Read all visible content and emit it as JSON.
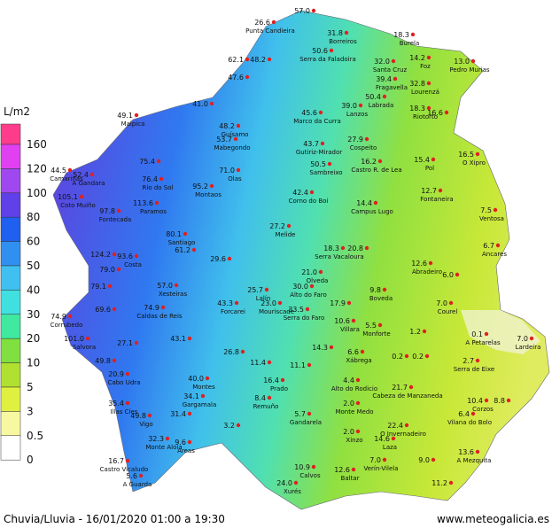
{
  "legend": {
    "title": "L/m2",
    "items": [
      {
        "label": "160",
        "color": "#ff3c8c"
      },
      {
        "label": "120",
        "color": "#e040f0"
      },
      {
        "label": "100",
        "color": "#a048f0"
      },
      {
        "label": "80",
        "color": "#6040e8"
      },
      {
        "label": "60",
        "color": "#2060f0"
      },
      {
        "label": "50",
        "color": "#3090f0"
      },
      {
        "label": "40",
        "color": "#40c0f0"
      },
      {
        "label": "30",
        "color": "#40e0e0"
      },
      {
        "label": "20",
        "color": "#40e8a0"
      },
      {
        "label": "10",
        "color": "#80e040"
      },
      {
        "label": "5",
        "color": "#b0e030"
      },
      {
        "label": "3",
        "color": "#e0f040"
      },
      {
        "label": "0.5",
        "color": "#f8f8a0"
      },
      {
        "label": "0",
        "color": "#ffffff"
      }
    ]
  },
  "stations": [
    {
      "value": "26.6",
      "name": "Punta Candieira"
    },
    {
      "value": "57.0"
    },
    {
      "value": "31.8",
      "name": "Borreiros"
    },
    {
      "value": "18.3",
      "name": "Burela"
    },
    {
      "value": "50.6",
      "name": "Serra da Faladoira"
    },
    {
      "value": "32.0",
      "name": "Santa Cruz"
    },
    {
      "value": "14.2",
      "name": "Foz"
    },
    {
      "value": "13.0",
      "name": "Pedro Murias"
    },
    {
      "value": "62.1"
    },
    {
      "value": "48.2"
    },
    {
      "value": "47.6"
    },
    {
      "value": "39.4",
      "name": "Fragavella"
    },
    {
      "value": "32.8",
      "name": "Lourenzá"
    },
    {
      "value": "50.4",
      "name": "Labrada"
    },
    {
      "value": "39.0",
      "name": "Lanzos"
    },
    {
      "value": "18.3",
      "name": "Riotorto"
    },
    {
      "value": "16.6"
    },
    {
      "value": "41.0"
    },
    {
      "value": "49.1",
      "name": "Malpica"
    },
    {
      "value": "48.2",
      "name": "Guísamo"
    },
    {
      "value": "45.6",
      "name": "Marco da Curra"
    },
    {
      "value": "53.7",
      "name": "Mabegondo"
    },
    {
      "value": "43.7",
      "name": "Gutiriz-Mirador"
    },
    {
      "value": "27.9",
      "name": "Cospeito"
    },
    {
      "value": "15.4",
      "name": "Pol"
    },
    {
      "value": "16.5",
      "name": "O Xipro"
    },
    {
      "value": "44.5",
      "name": "Camariñas"
    },
    {
      "value": "52.4",
      "name": "A Gandara"
    },
    {
      "value": "75.4"
    },
    {
      "value": "71.0",
      "name": "Olas"
    },
    {
      "value": "50.5",
      "name": "Sambreixo"
    },
    {
      "value": "16.2",
      "name": "Castro R. de Lea"
    },
    {
      "value": "76.4",
      "name": "Rio do Sol"
    },
    {
      "value": "95.2",
      "name": "Montaos"
    },
    {
      "value": "105.1",
      "name": "Coto Muiño"
    },
    {
      "value": "113.6",
      "name": "Paramos"
    },
    {
      "value": "42.4",
      "name": "Corno do Boi"
    },
    {
      "value": "14.4",
      "name": "Campus Lugo"
    },
    {
      "value": "12.7",
      "name": "Fontaneira"
    },
    {
      "value": "7.5",
      "name": "Ventosa"
    },
    {
      "value": "97.8",
      "name": "Fontecada"
    },
    {
      "value": "80.1",
      "name": "Santiago"
    },
    {
      "value": "27.2",
      "name": "Melide"
    },
    {
      "value": "18.3",
      "name": "Serra Vacaloura"
    },
    {
      "value": "20.8"
    },
    {
      "value": "6.7",
      "name": "Ancares"
    },
    {
      "value": "124.2"
    },
    {
      "value": "93.6",
      "name": "Costa"
    },
    {
      "value": "61.2"
    },
    {
      "value": "29.6"
    },
    {
      "value": "12.6",
      "name": "Abradeiro"
    },
    {
      "value": "6.0"
    },
    {
      "value": "79.0"
    },
    {
      "value": "21.0",
      "name": "Olveda"
    },
    {
      "value": "79.1"
    },
    {
      "value": "57.0",
      "name": "Xesteiras"
    },
    {
      "value": "25.7",
      "name": "Lalín"
    },
    {
      "value": "30.0",
      "name": "Alto do Faro"
    },
    {
      "value": "9.8",
      "name": "Boveda"
    },
    {
      "value": "69.6"
    },
    {
      "value": "74.9",
      "name": "Caldas de Reis"
    },
    {
      "value": "43.3",
      "name": "Forcarei"
    },
    {
      "value": "23.0",
      "name": "Mouriscade"
    },
    {
      "value": "33.5",
      "name": "Serra do Faro"
    },
    {
      "value": "17.9"
    },
    {
      "value": "7.0",
      "name": "Courel"
    },
    {
      "value": "74.9",
      "name": "Corrubedo"
    },
    {
      "value": "10.6",
      "name": "Villara"
    },
    {
      "value": "5.5",
      "name": "Monforte"
    },
    {
      "value": "1.2"
    },
    {
      "value": "101.0",
      "name": "Salvora"
    },
    {
      "value": "27.1"
    },
    {
      "value": "43.1"
    },
    {
      "value": "0.1",
      "name": "A Petarelas"
    },
    {
      "value": "14.3"
    },
    {
      "value": "6.6",
      "name": "Xábrega"
    },
    {
      "value": "0.2"
    },
    {
      "value": "0.2"
    },
    {
      "value": "7.0",
      "name": "Lardeira"
    },
    {
      "value": "49.8"
    },
    {
      "value": "26.8"
    },
    {
      "value": "11.4"
    },
    {
      "value": "11.1"
    },
    {
      "value": "2.7",
      "name": "Serra de Eixe"
    },
    {
      "value": "20.9",
      "name": "Cabo Udra"
    },
    {
      "value": "40.0",
      "name": "Montes"
    },
    {
      "value": "16.4",
      "name": "Prado"
    },
    {
      "value": "4.4",
      "name": "Alto do Rodicio"
    },
    {
      "value": "21.7",
      "name": "Cabeza de Manzaneda"
    },
    {
      "value": "34.1",
      "name": "Gargamala"
    },
    {
      "value": "8.4",
      "name": "Remuño"
    },
    {
      "value": "2.0",
      "name": "Monte Medo"
    },
    {
      "value": "10.4",
      "name": "Corzos"
    },
    {
      "value": "8.8"
    },
    {
      "value": "35.4",
      "name": "Illas Cíes"
    },
    {
      "value": "5.7",
      "name": "Gandarela"
    },
    {
      "value": "31.4"
    },
    {
      "value": "6.4",
      "name": "Vilana do Bolo"
    },
    {
      "value": "49.8",
      "name": "Vigo"
    },
    {
      "value": "22.4",
      "name": "O Invernadeiro"
    },
    {
      "value": "2.0",
      "name": "Xinzo"
    },
    {
      "value": "32.3",
      "name": "Monte Aloia"
    },
    {
      "value": "9.6",
      "name": "Areas"
    },
    {
      "value": "14.6",
      "name": "Laza"
    },
    {
      "value": "13.6",
      "name": "A Mezquita"
    },
    {
      "value": "16.7",
      "name": "Castro Vicaludo"
    },
    {
      "value": "7.0",
      "name": "Verín-Vilela"
    },
    {
      "value": "9.0"
    },
    {
      "value": "10.9",
      "name": "Calvos"
    },
    {
      "value": "12.6",
      "name": "Baltar"
    },
    {
      "value": "5.6",
      "name": "A Guarda"
    },
    {
      "value": "24.0",
      "name": "Xurés"
    },
    {
      "value": "11.2"
    },
    {
      "value": "3.2"
    }
  ],
  "footer": {
    "caption": "Chuvia/Lluvia - 16/01/2020 01:00 a 19:30",
    "site": "www.meteogalicia.es"
  }
}
